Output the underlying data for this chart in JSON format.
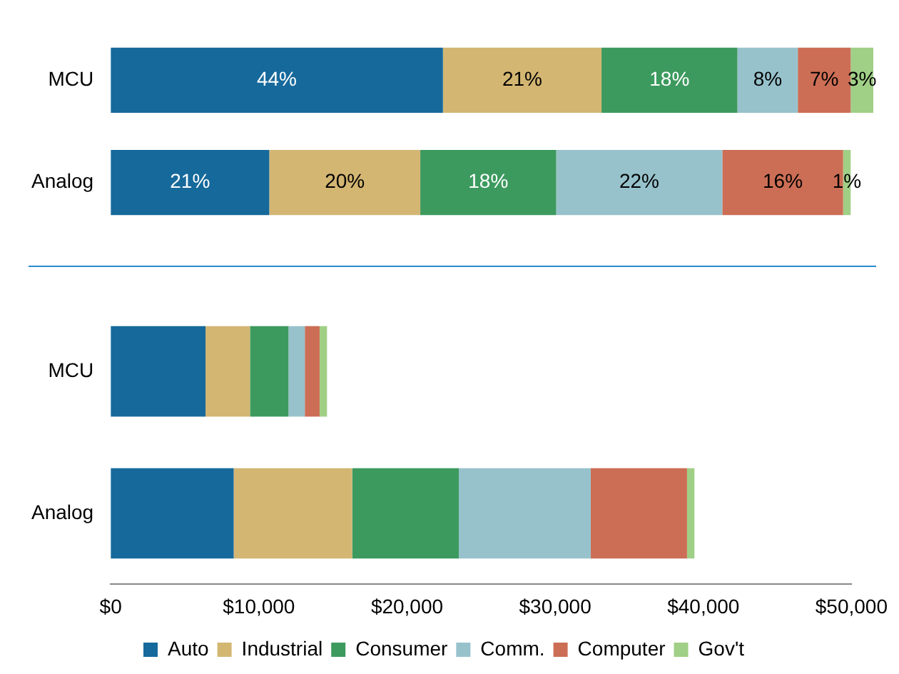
{
  "chart_data": [
    {
      "type": "bar",
      "orientation": "horizontal",
      "stacked": true,
      "categories": [
        "MCU",
        "Analog"
      ],
      "tick_labels": "y",
      "legend": false,
      "grid": false,
      "series": [
        {
          "color": "#16699b",
          "values": [
            44,
            21
          ],
          "value_labels": [
            "44%",
            "21%"
          ]
        },
        {
          "color": "#d3b672",
          "values": [
            21,
            20
          ],
          "value_labels": [
            "21%",
            "20%"
          ]
        },
        {
          "color": "#3d9a5f",
          "values": [
            18,
            18
          ],
          "value_labels": [
            "18%",
            "18%"
          ]
        },
        {
          "color": "#97c2cc",
          "values": [
            8,
            22
          ],
          "value_labels": [
            "8%",
            "22%"
          ]
        },
        {
          "color": "#cc6e55",
          "values": [
            7,
            16
          ],
          "value_labels": [
            "7%",
            "16%"
          ]
        },
        {
          "color": "#a0cf86",
          "values": [
            3,
            1
          ],
          "value_labels": [
            "3%",
            "1%"
          ]
        }
      ]
    },
    {
      "type": "bar",
      "orientation": "horizontal",
      "stacked": true,
      "categories": [
        "MCU",
        "Analog"
      ],
      "legend": "bottom",
      "grid": false,
      "xlim": [
        0,
        50000
      ],
      "xticks": [
        {
          "value": 0,
          "label": "$0"
        },
        {
          "value": 10000,
          "label": "$10,000"
        },
        {
          "value": 20000,
          "label": "$20,000"
        },
        {
          "value": 30000,
          "label": "$30,000"
        },
        {
          "value": 40000,
          "label": "$40,000"
        },
        {
          "value": 50000,
          "label": "$50,000"
        }
      ],
      "series": [
        {
          "name": "Auto",
          "color": "#16699b",
          "values": [
            6400,
            8300
          ]
        },
        {
          "name": "Industrial",
          "color": "#d3b672",
          "values": [
            3000,
            8000
          ]
        },
        {
          "name": "Consumer",
          "color": "#3d9a5f",
          "values": [
            2600,
            7200
          ]
        },
        {
          "name": "Comm.",
          "color": "#97c2cc",
          "values": [
            1100,
            8900
          ]
        },
        {
          "name": "Computer",
          "color": "#cc6e55",
          "values": [
            1000,
            6500
          ]
        },
        {
          "name": "Gov't",
          "color": "#a0cf86",
          "values": [
            500,
            500
          ]
        }
      ]
    }
  ]
}
